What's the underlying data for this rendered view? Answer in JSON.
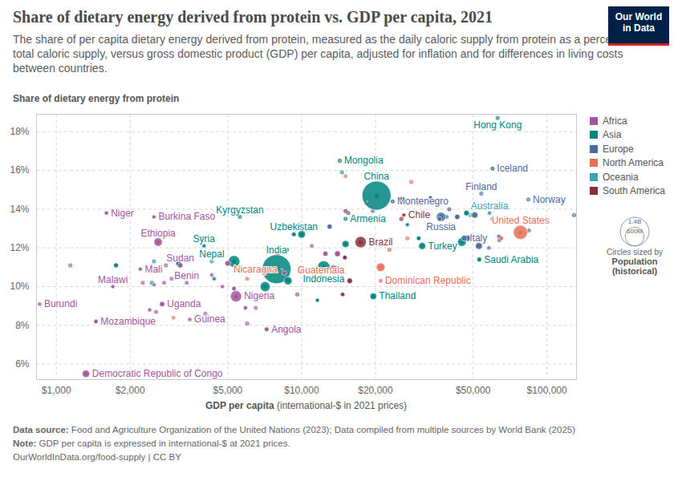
{
  "chart_data": {
    "type": "scatter",
    "title": "Share of dietary energy derived from protein vs. GDP per capita, 2021",
    "subtitle": "The share of per capita dietary energy derived from protein, measured as the daily caloric supply from protein as a percentage of total caloric supply, versus gross domestic product (GDP) per capita, adjusted for inflation and for differences in living costs between countries.",
    "logo": [
      "Our World",
      "in Data"
    ],
    "y_label": "Share of dietary energy from protein",
    "x_label": "GDP per capita",
    "x_label_unit": "(international-$ in 2021 prices)",
    "log": "x",
    "grid": true,
    "legend": "right",
    "xlim": [
      830,
      132000
    ],
    "ylim": [
      5.2,
      18.9
    ],
    "xticks": [
      {
        "value": 1000,
        "label": "$1,000"
      },
      {
        "value": 2000,
        "label": "$2,000"
      },
      {
        "value": 5000,
        "label": "$5,000"
      },
      {
        "value": 10000,
        "label": "$10,000"
      },
      {
        "value": 20000,
        "label": "$20,000"
      },
      {
        "value": 50000,
        "label": "$50,000"
      },
      {
        "value": 100000,
        "label": "$100,000"
      }
    ],
    "yticks": [
      {
        "value": 6,
        "label": "6%"
      },
      {
        "value": 8,
        "label": "8%"
      },
      {
        "value": 10,
        "label": "10%"
      },
      {
        "value": 12,
        "label": "12%"
      },
      {
        "value": 14,
        "label": "14%"
      },
      {
        "value": 16,
        "label": "16%"
      },
      {
        "value": 18,
        "label": "18%"
      }
    ],
    "size_legend": {
      "title": "Circles sized by",
      "variable": "Population (historical)",
      "values": [
        {
          "value": 1400000000,
          "label": "1.4B"
        },
        {
          "value": 600000000,
          "label": "600M"
        }
      ]
    },
    "source": {
      "label": "Data source:",
      "text": "Food and Agriculture Organization of the United Nations (2023); Data compiled from multiple sources by World Bank (2025)"
    },
    "note": {
      "label": "Note:",
      "text": "GDP per capita is expressed in international-$ at 2021 prices."
    },
    "url": "OurWorldInData.org/food-supply | CC BY",
    "series": [
      {
        "name": "Africa",
        "color": "#a2559c",
        "values": [
          {
            "x": 1600,
            "y": 13.8,
            "population": 25300000,
            "label": "Niger"
          },
          {
            "x": 2500,
            "y": 13.6,
            "population": 22100000,
            "label": "Burkina Faso"
          },
          {
            "x": 2600,
            "y": 12.3,
            "population": 120300000,
            "label": "Ethiopia"
          },
          {
            "x": 2200,
            "y": 10.9,
            "population": 21900000,
            "label": "Mali"
          },
          {
            "x": 3200,
            "y": 11.1,
            "population": 46900000,
            "label": "Sudan"
          },
          {
            "x": 1700,
            "y": 10.0,
            "population": 19900000,
            "label": "Malawi"
          },
          {
            "x": 3400,
            "y": 10.2,
            "population": 13000000,
            "label": "Benin"
          },
          {
            "x": 855,
            "y": 9.1,
            "population": 12600000,
            "label": "Burundi"
          },
          {
            "x": 2700,
            "y": 9.1,
            "population": 45900000,
            "label": "Uganda"
          },
          {
            "x": 5400,
            "y": 9.5,
            "population": 213400000,
            "label": "Nigeria"
          },
          {
            "x": 1450,
            "y": 8.2,
            "population": 32100000,
            "label": "Mozambique"
          },
          {
            "x": 3500,
            "y": 8.3,
            "population": 13500000,
            "label": "Guinea"
          },
          {
            "x": 7200,
            "y": 7.8,
            "population": 34500000,
            "label": "Angola"
          },
          {
            "x": 1320,
            "y": 5.5,
            "population": 95900000,
            "label": "Democratic Republic of Congo"
          },
          {
            "x": 1140,
            "y": 11.1,
            "population": 5500000
          },
          {
            "x": 2400,
            "y": 8.8,
            "population": 17000000
          },
          {
            "x": 2550,
            "y": 8.7,
            "population": 9000000
          },
          {
            "x": 2950,
            "y": 10.4,
            "population": 8000000
          },
          {
            "x": 2750,
            "y": 10.2,
            "population": 12000000
          },
          {
            "x": 4750,
            "y": 10.0,
            "population": 19000000
          },
          {
            "x": 5900,
            "y": 8.9,
            "population": 27000000
          },
          {
            "x": 6500,
            "y": 8.9,
            "population": 6000000
          },
          {
            "x": 4300,
            "y": 10.6,
            "population": 16000000
          },
          {
            "x": 4050,
            "y": 8.6,
            "population": 8500000
          },
          {
            "x": 6000,
            "y": 8.1,
            "population": 5000000
          },
          {
            "x": 5300,
            "y": 9.9,
            "population": 33000000
          },
          {
            "x": 9600,
            "y": 9.6,
            "population": 2500000
          },
          {
            "x": 2500,
            "y": 10.1,
            "population": 18000000
          },
          {
            "x": 2250,
            "y": 10.2,
            "population": 9000000
          },
          {
            "x": 2800,
            "y": 11.1,
            "population": 7000000
          },
          {
            "x": 5000,
            "y": 11.2,
            "population": 53000000
          },
          {
            "x": 13500,
            "y": 10.9,
            "population": 109000000
          },
          {
            "x": 12500,
            "y": 11.7,
            "population": 44000000
          },
          {
            "x": 8500,
            "y": 10.7,
            "population": 37000000
          },
          {
            "x": 14000,
            "y": 11.7,
            "population": 60000000
          },
          {
            "x": 11000,
            "y": 12.1,
            "population": 12000000
          }
        ]
      },
      {
        "name": "Asia",
        "color": "#00847e",
        "values": [
          {
            "x": 20200,
            "y": 14.7,
            "population": 1412000000,
            "label": "China"
          },
          {
            "x": 7900,
            "y": 10.9,
            "population": 1408000000,
            "label": "India"
          },
          {
            "x": 14300,
            "y": 16.5,
            "population": 3300000,
            "label": "Mongolia"
          },
          {
            "x": 5600,
            "y": 13.6,
            "population": 6700000,
            "label": "Kyrgyzstan"
          },
          {
            "x": 9300,
            "y": 12.7,
            "population": 34900000,
            "label": "Uzbekistan"
          },
          {
            "x": 15100,
            "y": 13.5,
            "population": 2800000,
            "label": "Armenia"
          },
          {
            "x": 4000,
            "y": 12.1,
            "population": 21300000,
            "label": "Syria"
          },
          {
            "x": 4300,
            "y": 11.3,
            "population": 30000000,
            "label": "Nepal"
          },
          {
            "x": 12300,
            "y": 11.0,
            "population": 273800000,
            "label": "Indonesia"
          },
          {
            "x": 19600,
            "y": 9.5,
            "population": 71600000,
            "label": "Thailand"
          },
          {
            "x": 31000,
            "y": 12.1,
            "population": 85000000,
            "label": "Turkey"
          },
          {
            "x": 53000,
            "y": 11.4,
            "population": 35900000,
            "label": "Saudi Arabia"
          },
          {
            "x": 63000,
            "y": 18.7,
            "population": 7400000,
            "label": "Hong Kong"
          },
          {
            "x": 1750,
            "y": 11.1,
            "population": 40000000
          },
          {
            "x": 3150,
            "y": 11.2,
            "population": 54000000
          },
          {
            "x": 5300,
            "y": 11.3,
            "population": 231000000
          },
          {
            "x": 7100,
            "y": 10.0,
            "population": 169000000
          },
          {
            "x": 8800,
            "y": 10.3,
            "population": 113000000
          },
          {
            "x": 10000,
            "y": 12.7,
            "population": 97500000
          },
          {
            "x": 15100,
            "y": 12.2,
            "population": 88000000
          },
          {
            "x": 45000,
            "y": 12.3,
            "population": 125000000
          },
          {
            "x": 47000,
            "y": 13.8,
            "population": 51700000
          },
          {
            "x": 30000,
            "y": 12.5,
            "population": 33000000
          },
          {
            "x": 27000,
            "y": 13.2,
            "population": 19000000
          },
          {
            "x": 4400,
            "y": 10.4,
            "population": 16600000
          },
          {
            "x": 11600,
            "y": 9.3,
            "population": 21800000
          },
          {
            "x": 4500,
            "y": 11.6,
            "population": 9800000
          },
          {
            "x": 8700,
            "y": 11.9,
            "population": 4000000
          },
          {
            "x": 3950,
            "y": 12.5,
            "population": 5000000
          }
        ]
      },
      {
        "name": "Europe",
        "color": "#4c6a9c",
        "values": [
          {
            "x": 60000,
            "y": 16.1,
            "population": 370000,
            "label": "Iceland"
          },
          {
            "x": 54000,
            "y": 14.8,
            "population": 5500000,
            "label": "Finland"
          },
          {
            "x": 84000,
            "y": 14.5,
            "population": 5400000,
            "label": "Norway"
          },
          {
            "x": 23500,
            "y": 14.4,
            "population": 620000,
            "label": "Montenegro"
          },
          {
            "x": 37000,
            "y": 13.6,
            "population": 145000000,
            "label": "Russia"
          },
          {
            "x": 46000,
            "y": 12.5,
            "population": 59000000,
            "label": "Italy"
          },
          {
            "x": 129000,
            "y": 13.7,
            "population": 5000000
          },
          {
            "x": 52800,
            "y": 12.1,
            "population": 83000000
          },
          {
            "x": 47500,
            "y": 12.5,
            "population": 67000000
          },
          {
            "x": 50800,
            "y": 13.7,
            "population": 68000000
          },
          {
            "x": 43100,
            "y": 13.6,
            "population": 47000000
          },
          {
            "x": 36500,
            "y": 13.5,
            "population": 38000000
          },
          {
            "x": 63700,
            "y": 12.6,
            "population": 17500000
          },
          {
            "x": 84500,
            "y": 12.9,
            "population": 8700000
          },
          {
            "x": 13000,
            "y": 13.1,
            "population": 43000000
          },
          {
            "x": 19500,
            "y": 13.9,
            "population": 9400000
          },
          {
            "x": 18500,
            "y": 14.4,
            "population": 6800000
          },
          {
            "x": 39000,
            "y": 13.6,
            "population": 10300000
          },
          {
            "x": 33000,
            "y": 13.7,
            "population": 10600000
          },
          {
            "x": 33500,
            "y": 14.6,
            "population": 19100000
          },
          {
            "x": 15500,
            "y": 13.8,
            "population": 2800000
          },
          {
            "x": 40000,
            "y": 14.0,
            "population": 1300000
          },
          {
            "x": 60000,
            "y": 13.5,
            "population": 10400000
          },
          {
            "x": 64000,
            "y": 12.4,
            "population": 5850000
          },
          {
            "x": 58000,
            "y": 12.0,
            "population": 11600000
          }
        ]
      },
      {
        "name": "North America",
        "color": "#e56e5a",
        "values": [
          {
            "x": 78000,
            "y": 12.8,
            "population": 336500000,
            "label": "United States"
          },
          {
            "x": 8300,
            "y": 10.9,
            "population": 6800000,
            "label": "Nicaragua"
          },
          {
            "x": 12000,
            "y": 10.5,
            "population": 17100000,
            "label": "Guatemala"
          },
          {
            "x": 21000,
            "y": 10.3,
            "population": 11100000,
            "label": "Dominican Republic"
          },
          {
            "x": 21000,
            "y": 11.0,
            "population": 126700000
          },
          {
            "x": 65000,
            "y": 12.5,
            "population": 38200000
          },
          {
            "x": 15100,
            "y": 15.7,
            "population": 11300000
          },
          {
            "x": 28000,
            "y": 15.4,
            "population": 4400000
          },
          {
            "x": 27000,
            "y": 12.5,
            "population": 5150000
          },
          {
            "x": 22800,
            "y": 11.9,
            "population": 1500000
          },
          {
            "x": 6000,
            "y": 10.4,
            "population": 10300000
          },
          {
            "x": 10000,
            "y": 10.8,
            "population": 6300000
          },
          {
            "x": 3000,
            "y": 8.4,
            "population": 11400000
          }
        ]
      },
      {
        "name": "Oceania",
        "color": "#38a5b0",
        "values": [
          {
            "x": 58300,
            "y": 13.8,
            "population": 25700000,
            "label": "Australia"
          },
          {
            "x": 14600,
            "y": 15.9,
            "population": 900000
          },
          {
            "x": 2500,
            "y": 11.3,
            "population": 700000
          },
          {
            "x": 2450,
            "y": 10.2,
            "population": 320000
          },
          {
            "x": 48700,
            "y": 13.7,
            "population": 5100000
          },
          {
            "x": 4300,
            "y": 11.3,
            "population": 10000000
          }
        ]
      },
      {
        "name": "South America",
        "color": "#883039",
        "values": [
          {
            "x": 17400,
            "y": 12.3,
            "population": 214000000,
            "label": "Brazil"
          },
          {
            "x": 26100,
            "y": 13.7,
            "population": 19500000,
            "label": "Chile"
          },
          {
            "x": 25500,
            "y": 14.5,
            "population": 45800000
          },
          {
            "x": 15700,
            "y": 10.3,
            "population": 51500000
          },
          {
            "x": 15000,
            "y": 11.5,
            "population": 33700000
          },
          {
            "x": 11200,
            "y": 10.5,
            "population": 17800000
          },
          {
            "x": 15100,
            "y": 13.9,
            "population": 6700000
          },
          {
            "x": 25500,
            "y": 13.5,
            "population": 3400000
          },
          {
            "x": 8000,
            "y": 11.7,
            "population": 12100000
          },
          {
            "x": 14700,
            "y": 9.6,
            "population": 28200000
          }
        ]
      }
    ]
  }
}
